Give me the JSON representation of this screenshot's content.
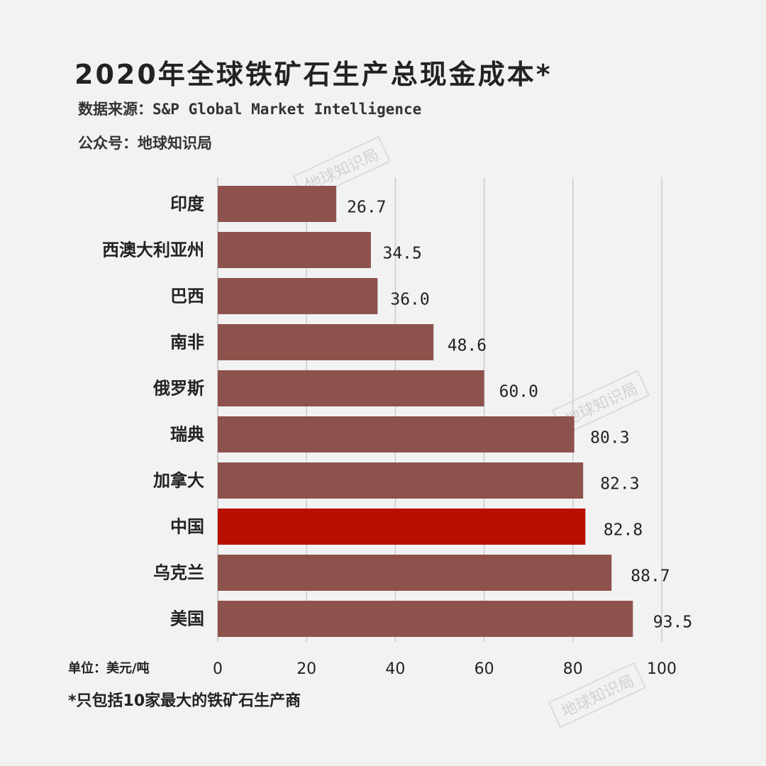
{
  "header": {
    "title": "2020年全球铁矿石生产总现金成本*",
    "source": "数据来源：S&P Global Market Intelligence",
    "account": "公众号：地球知识局"
  },
  "watermark": "地球知识局",
  "footnote": "*只包括10家最大的铁矿石生产商",
  "colors": {
    "bar": "#8e524c",
    "highlight": "#b80f00",
    "grid": "#cccccc"
  },
  "chart_data": {
    "type": "bar",
    "orientation": "horizontal",
    "title": "2020年全球铁矿石生产总现金成本*",
    "xlabel": "单位：美元/吨",
    "categories": [
      "印度",
      "西澳大利亚州",
      "巴西",
      "南非",
      "俄罗斯",
      "瑞典",
      "加拿大",
      "中国",
      "乌克兰",
      "美国"
    ],
    "values": [
      26.7,
      34.5,
      36.0,
      48.6,
      60.0,
      80.3,
      82.3,
      82.8,
      88.7,
      93.5
    ],
    "value_labels": [
      "26.7",
      "34.5",
      "36.0",
      "48.6",
      "60.0",
      "80.3",
      "82.3",
      "82.8",
      "88.7",
      "93.5"
    ],
    "highlight": "中国",
    "xlim": [
      0,
      100
    ],
    "xticks": [
      0,
      20,
      40,
      60,
      80,
      100
    ],
    "xtick_labels": [
      "0",
      "20",
      "40",
      "60",
      "80",
      "100"
    ],
    "grid": true
  }
}
